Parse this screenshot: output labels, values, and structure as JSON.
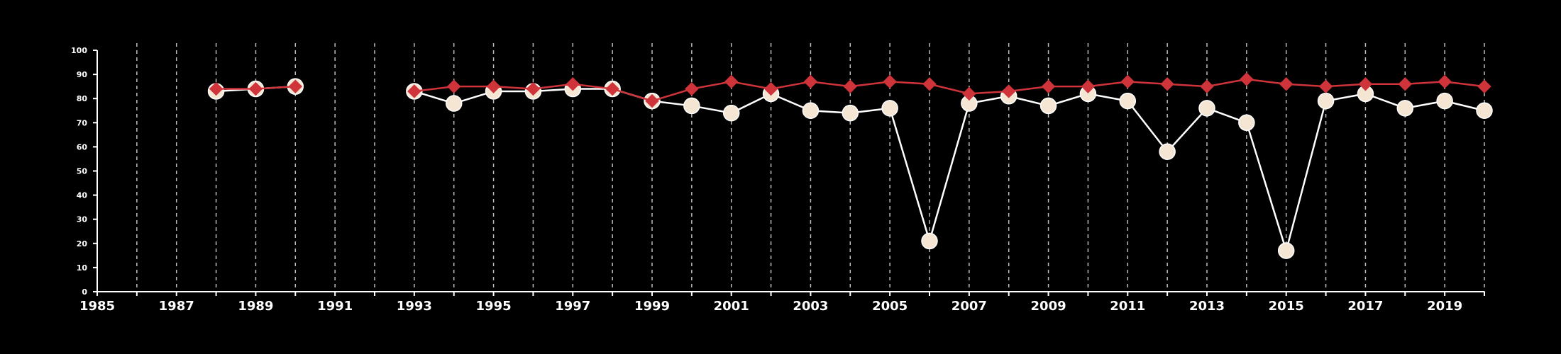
{
  "chart_data": {
    "type": "line",
    "title": "",
    "xlabel": "",
    "ylabel": "",
    "xlim": [
      1985,
      2020
    ],
    "ylim": [
      0,
      100
    ],
    "x_ticks": [
      1985,
      1987,
      1989,
      1991,
      1993,
      1995,
      1997,
      1999,
      2001,
      2003,
      2005,
      2007,
      2009,
      2011,
      2013,
      2015,
      2017,
      2019
    ],
    "y_ticks": [
      0,
      10,
      20,
      30,
      40,
      50,
      60,
      70,
      80,
      90,
      100
    ],
    "grid": "vertical dashed lines at each year",
    "background": "#000000",
    "series": [
      {
        "marker": "circle",
        "color": "#f5e6d3",
        "line_color": "#ffffff",
        "segments": [
          [
            [
              1988,
              83
            ],
            [
              1989,
              84
            ],
            [
              1990,
              85
            ]
          ],
          [
            [
              1993,
              83
            ],
            [
              1994,
              78
            ],
            [
              1995,
              83
            ],
            [
              1996,
              83
            ],
            [
              1997,
              84
            ],
            [
              1998,
              84
            ],
            [
              1999,
              79
            ],
            [
              2000,
              77
            ],
            [
              2001,
              74
            ],
            [
              2002,
              82
            ],
            [
              2003,
              75
            ],
            [
              2004,
              74
            ],
            [
              2005,
              76
            ],
            [
              2006,
              21
            ],
            [
              2007,
              78
            ],
            [
              2008,
              81
            ],
            [
              2009,
              77
            ],
            [
              2010,
              82
            ],
            [
              2011,
              79
            ],
            [
              2012,
              58
            ],
            [
              2013,
              76
            ],
            [
              2014,
              70
            ],
            [
              2015,
              17
            ],
            [
              2016,
              79
            ],
            [
              2017,
              82
            ],
            [
              2018,
              76
            ],
            [
              2019,
              79
            ],
            [
              2020,
              75
            ]
          ]
        ]
      },
      {
        "marker": "diamond",
        "color": "#d0343b",
        "line_color": "#d0343b",
        "segments": [
          [
            [
              1988,
              84
            ],
            [
              1989,
              84
            ],
            [
              1990,
              85
            ]
          ],
          [
            [
              1993,
              83
            ],
            [
              1994,
              85
            ],
            [
              1995,
              85
            ],
            [
              1996,
              84
            ],
            [
              1997,
              86
            ],
            [
              1998,
              84
            ],
            [
              1999,
              79
            ],
            [
              2000,
              84
            ],
            [
              2001,
              87
            ],
            [
              2002,
              84
            ],
            [
              2003,
              87
            ],
            [
              2004,
              85
            ],
            [
              2005,
              87
            ],
            [
              2006,
              86
            ],
            [
              2007,
              82
            ],
            [
              2008,
              83
            ],
            [
              2009,
              85
            ],
            [
              2010,
              85
            ],
            [
              2011,
              87
            ],
            [
              2012,
              86
            ],
            [
              2013,
              85
            ],
            [
              2014,
              88
            ],
            [
              2015,
              86
            ],
            [
              2016,
              85
            ],
            [
              2017,
              86
            ],
            [
              2018,
              86
            ],
            [
              2019,
              87
            ],
            [
              2020,
              85
            ]
          ]
        ]
      }
    ]
  }
}
